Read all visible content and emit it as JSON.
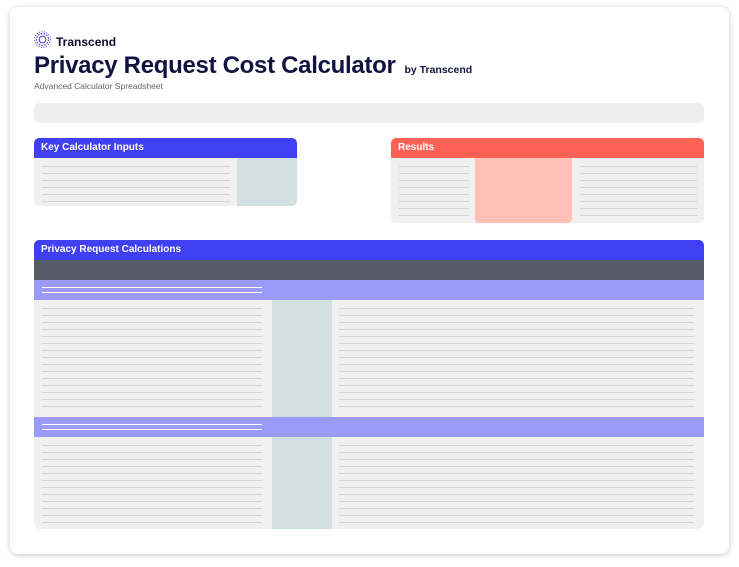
{
  "brand": {
    "logo_text": "Transcend",
    "logo_icon": "transcend-logo-icon"
  },
  "header": {
    "title": "Privacy Request Cost Calculator",
    "byline": "by Transcend",
    "subtitle": "Advanced Calculator Spreadsheet"
  },
  "panels": {
    "inputs": {
      "title": "Key Calculator Inputs"
    },
    "results": {
      "title": "Results"
    },
    "calculations": {
      "title": "Privacy Request Calculations"
    }
  },
  "colors": {
    "navy": "#121140",
    "blue_header": "#4040f2",
    "results_header": "#ff6254",
    "results_highlight": "#ffc0b8",
    "input_cell": "#d2e0e2",
    "dark_row": "#555c68",
    "purple_row": "#9a9af8",
    "panel_bg": "#f0f0f0"
  }
}
